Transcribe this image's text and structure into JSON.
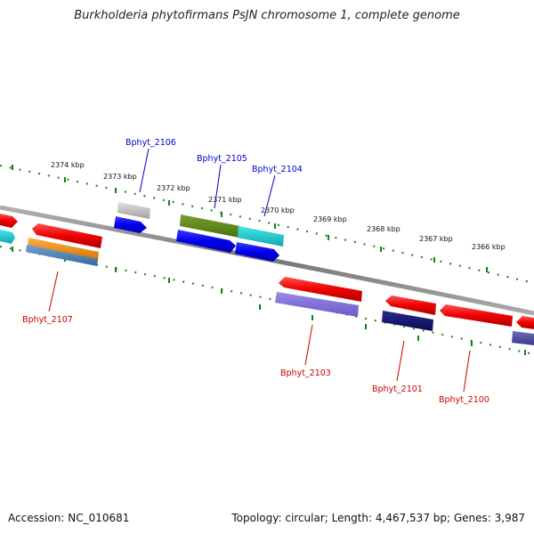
{
  "title": "Burkholderia phytofirmans PsJN chromosome 1, complete genome",
  "footer": {
    "accession": "Accession: NC_010681",
    "summary": "Topology: circular; Length: 4,467,537 bp; Genes: 3,987"
  },
  "colors": {
    "forward_label": "#0000cc",
    "reverse_label": "#cc0000",
    "backbone": "#888888",
    "scale_dots": "#2a8a2a",
    "scale_ticks": "#1a7a1a"
  },
  "scale_labels": [
    "2374 kbp",
    "2373 kbp",
    "2372 kbp",
    "2371 kbp",
    "2370 kbp",
    "2369 kbp",
    "2368 kbp",
    "2367 kbp",
    "2366 kbp"
  ],
  "genes": [
    {
      "name": "Bphyt_2106",
      "strand": "forward"
    },
    {
      "name": "Bphyt_2105",
      "strand": "forward"
    },
    {
      "name": "Bphyt_2104",
      "strand": "forward"
    },
    {
      "name": "Bphyt_2107",
      "strand": "reverse"
    },
    {
      "name": "Bphyt_2103",
      "strand": "reverse"
    },
    {
      "name": "Bphyt_2101",
      "strand": "reverse"
    },
    {
      "name": "Bphyt_2100",
      "strand": "reverse"
    }
  ]
}
